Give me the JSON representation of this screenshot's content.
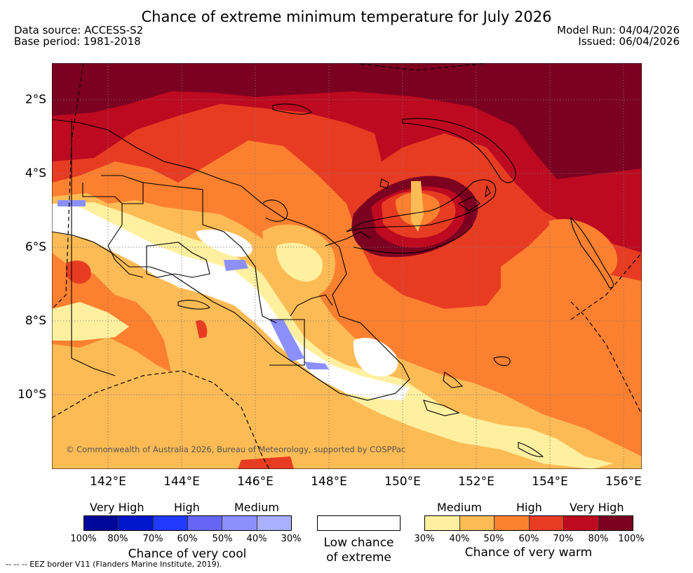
{
  "header": {
    "title": "Chance of extreme minimum temperature for July 2026",
    "data_source": "Data source: ACCESS-S2",
    "base_period": "Base period: 1981-2018",
    "model_run": "Model Run: 04/04/2026",
    "issued": "Issued: 06/04/2026"
  },
  "map": {
    "lat_labels": [
      "2°S",
      "4°S",
      "6°S",
      "8°S",
      "10°S"
    ],
    "lon_labels": [
      "142°E",
      "144°E",
      "146°E",
      "148°E",
      "150°E",
      "152°E",
      "154°E",
      "156°E"
    ],
    "copyright": "© Commonwealth of Australia 2026, Bureau of Meteorology, supported by COSPPac",
    "colors": {
      "warm_30_40": "#fff0a0",
      "warm_40_50": "#fdbb55",
      "warm_50_60": "#fc8030",
      "warm_60_70": "#e83c22",
      "warm_70_80": "#bd0a20",
      "warm_80_100": "#7c0020",
      "cool_30_40": "#aab0ff",
      "cool_40_50": "#8c90ff"
    }
  },
  "legend": {
    "cool": {
      "levels": [
        "Very High",
        "High",
        "Medium"
      ],
      "colors": [
        "#000899",
        "#0016cc",
        "#2239ff",
        "#6666f5",
        "#8c90ff",
        "#aab0ff"
      ],
      "ticks": [
        "100%",
        "80%",
        "70%",
        "60%",
        "50%",
        "40%",
        "30%"
      ],
      "label": "Chance of very cool"
    },
    "low": {
      "label": "Low chance of extreme"
    },
    "warm": {
      "levels": [
        "Medium",
        "High",
        "Very High"
      ],
      "colors": [
        "#fff0a0",
        "#fdbb55",
        "#fc8030",
        "#e83c22",
        "#bd0a20",
        "#7c0020"
      ],
      "ticks": [
        "30%",
        "40%",
        "50%",
        "60%",
        "70%",
        "80%",
        "100%"
      ],
      "label": "Chance of very warm"
    }
  },
  "footer": {
    "eez_note": "--  --  -- EEZ border V11 (Flanders Marine Institute, 2019)."
  }
}
